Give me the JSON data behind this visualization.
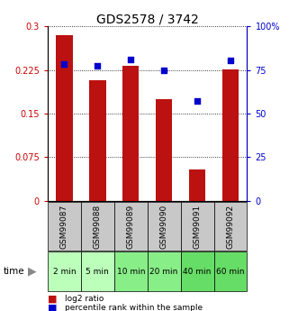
{
  "title": "GDS2578 / 3742",
  "samples": [
    "GSM99087",
    "GSM99088",
    "GSM99089",
    "GSM99090",
    "GSM99091",
    "GSM99092"
  ],
  "time_labels": [
    "2 min",
    "5 min",
    "10 min",
    "20 min",
    "40 min",
    "60 min"
  ],
  "log2_ratio": [
    0.285,
    0.208,
    0.232,
    0.175,
    0.053,
    0.226
  ],
  "percentile_rank": [
    78.5,
    77.5,
    81.0,
    75.0,
    57.0,
    80.5
  ],
  "bar_color": "#bb1111",
  "dot_color": "#0000cc",
  "left_yticks": [
    0,
    0.075,
    0.15,
    0.225,
    0.3
  ],
  "left_ytick_labels": [
    "0",
    "0.075",
    "0.15",
    "0.225",
    "0.3"
  ],
  "right_yticks": [
    0,
    25,
    50,
    75,
    100
  ],
  "right_ytick_labels": [
    "0",
    "25",
    "50",
    "75",
    "100%"
  ],
  "ylim_left": [
    0,
    0.3
  ],
  "ylim_right": [
    0,
    100
  ],
  "bar_width": 0.5,
  "gray_bg": "#c8c8c8",
  "green_bg_light": "#bbffbb",
  "green_bg_dark": "#66dd66",
  "legend_items": [
    "log2 ratio",
    "percentile rank within the sample"
  ],
  "legend_colors": [
    "#bb1111",
    "#0000cc"
  ],
  "title_fontsize": 10,
  "tick_fontsize": 7,
  "label_fontsize": 6.5,
  "time_fontsize": 7.5
}
